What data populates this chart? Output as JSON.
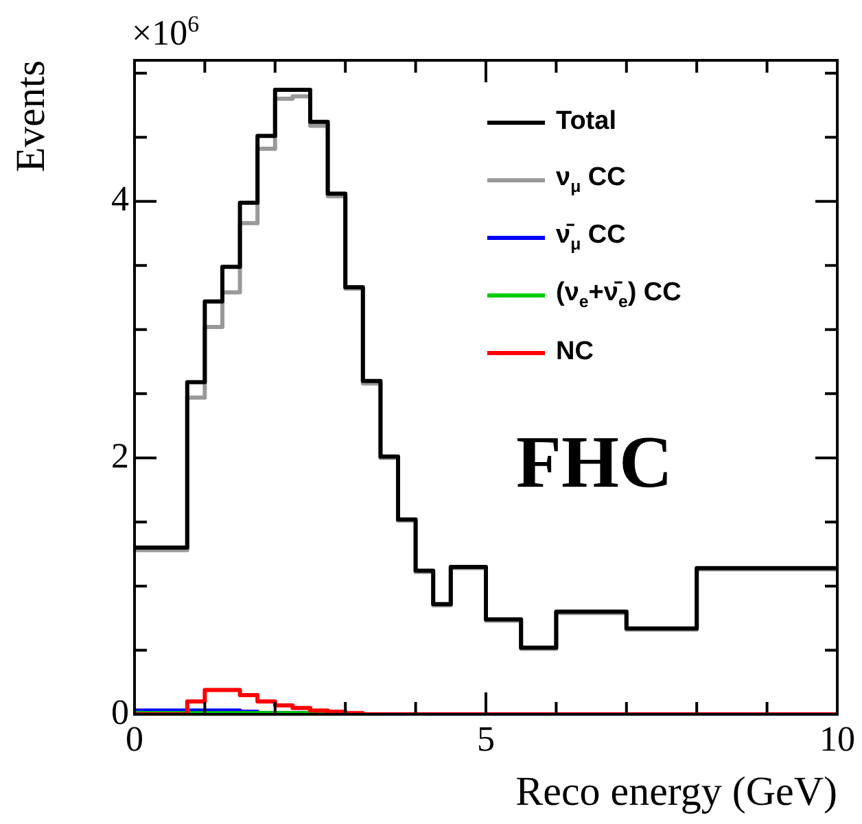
{
  "chart_data": {
    "type": "histogram",
    "xlabel": "Reco energy (GeV)",
    "ylabel": "Events",
    "bins": [
      0,
      0.75,
      1,
      1.25,
      1.5,
      1.75,
      2,
      2.25,
      2.5,
      2.75,
      3,
      3.25,
      3.5,
      3.75,
      4,
      4.25,
      4.5,
      5,
      5.5,
      6,
      7,
      8,
      10
    ],
    "series": [
      {
        "name": "Total",
        "color": "#000000",
        "values": [
          1.3,
          2.59,
          3.22,
          3.49,
          3.99,
          4.51,
          4.87,
          4.87,
          4.62,
          4.06,
          3.33,
          2.6,
          2.01,
          1.52,
          1.12,
          0.86,
          1.15,
          0.74,
          0.52,
          0.8,
          0.67,
          1.14
        ]
      },
      {
        "name": "ν$_{μ}$ CC",
        "color": "#999999",
        "values": [
          1.28,
          2.47,
          3.02,
          3.29,
          3.83,
          4.41,
          4.8,
          4.82,
          4.59,
          4.04,
          3.32,
          2.58,
          2.0,
          1.51,
          1.11,
          0.85,
          1.14,
          0.73,
          0.51,
          0.79,
          0.66,
          1.13
        ]
      },
      {
        "name": "ν̄$_{μ}$ CC",
        "color": "#0000ff",
        "values": [
          0.03,
          0.03,
          0.03,
          0.03,
          0.02,
          0.01,
          0.01,
          0.01,
          0.01,
          0,
          0,
          0,
          0,
          0,
          0,
          0,
          0,
          0,
          0,
          0,
          0,
          0
        ]
      },
      {
        "name": "(ν$_{e}$+ν̄$_{e}$) CC",
        "color": "#00cc00",
        "values": [
          0.01,
          0.01,
          0.01,
          0.01,
          0.01,
          0.01,
          0.01,
          0.01,
          0.01,
          0,
          0,
          0,
          0,
          0,
          0,
          0,
          0,
          0,
          0,
          0,
          0,
          0
        ]
      },
      {
        "name": "NC",
        "color": "#ff0000",
        "values": [
          0,
          0.1,
          0.19,
          0.19,
          0.15,
          0.1,
          0.07,
          0.05,
          0.03,
          0.02,
          0.01,
          0,
          0,
          0,
          0,
          0,
          0,
          0,
          0,
          0,
          0,
          0
        ]
      }
    ],
    "xlim": [
      0,
      10
    ],
    "ylim": [
      0,
      5.1
    ],
    "xticks": [
      0,
      {
        "value": 1,
        "label": null
      },
      {
        "value": 2,
        "label": null
      },
      {
        "value": 3,
        "label": null
      },
      {
        "value": 4,
        "label": null
      },
      5,
      {
        "value": 6,
        "label": null
      },
      {
        "value": 7,
        "label": null
      },
      {
        "value": 8,
        "label": null
      },
      {
        "value": 9,
        "label": null
      },
      10
    ],
    "yticks": [
      0,
      {
        "value": 0.5,
        "label": null
      },
      {
        "value": 1,
        "label": null
      },
      {
        "value": 1.5,
        "label": null
      },
      2,
      {
        "value": 2.5,
        "label": null
      },
      {
        "value": 3,
        "label": null
      },
      {
        "value": 3.5,
        "label": null
      },
      4,
      {
        "value": 4.5,
        "label": null
      },
      {
        "value": 5,
        "label": null
      }
    ],
    "legend": "top right",
    "grid": false,
    "annotations": [
      "×10$^{6}$",
      "FHC"
    ]
  }
}
